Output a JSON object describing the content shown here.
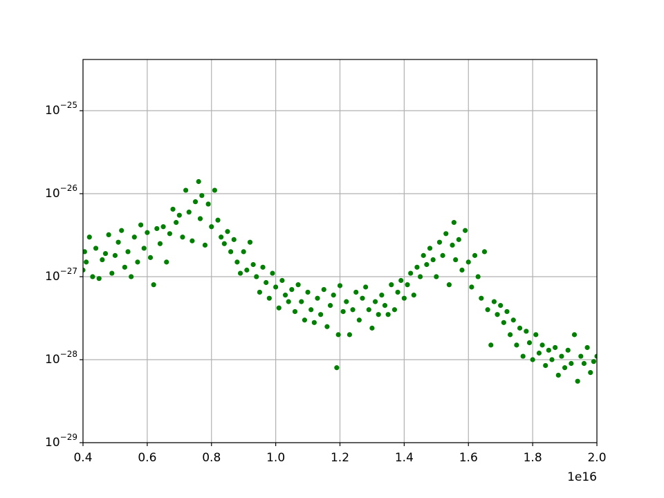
{
  "chart_data": {
    "type": "scatter",
    "color": "#008000",
    "grid": true,
    "log_y": true,
    "x_offset_label": "1e16",
    "xlim": [
      4000000000000000.0,
      2e+16
    ],
    "xticks": [
      {
        "value": 4000000000000000.0,
        "label": "0.4"
      },
      {
        "value": 6000000000000000.0,
        "label": "0.6"
      },
      {
        "value": 8000000000000000.0,
        "label": "0.8"
      },
      {
        "value": 1e+16,
        "label": "1.0"
      },
      {
        "value": 1.2e+16,
        "label": "1.2"
      },
      {
        "value": 1.4e+16,
        "label": "1.4"
      },
      {
        "value": 1.6e+16,
        "label": "1.6"
      },
      {
        "value": 1.8e+16,
        "label": "1.8"
      },
      {
        "value": 2e+16,
        "label": "2.0"
      }
    ],
    "ylim": [
      1e-29,
      4.14e-25
    ],
    "yticks": [
      {
        "value": 1e-29,
        "label": "10−29"
      },
      {
        "value": 1e-28,
        "label": "10−28"
      },
      {
        "value": 1e-27,
        "label": "10−27"
      },
      {
        "value": 1e-26,
        "label": "10−26"
      },
      {
        "value": 1e-25,
        "label": "10−25"
      }
    ],
    "x": [
      4000000000000000.0,
      4050000000000000.0,
      4100000000000000.0,
      4200000000000000.0,
      4300000000000000.0,
      4400000000000000.0,
      4500000000000000.0,
      4600000000000000.0,
      4700000000000000.0,
      4800000000000000.0,
      4900000000000000.0,
      5000000000000000.0,
      5100000000000000.0,
      5200000000000000.0,
      5300000000000000.0,
      5400000000000000.0,
      5500000000000000.0,
      5600000000000000.0,
      5700000000000000.0,
      5800000000000000.0,
      5900000000000000.0,
      6000000000000000.0,
      6100000000000000.0,
      6200000000000000.0,
      6300000000000000.0,
      6400000000000000.0,
      6500000000000000.0,
      6600000000000000.0,
      6700000000000000.0,
      6800000000000000.0,
      6900000000000000.0,
      7000000000000000.0,
      7100000000000000.0,
      7200000000000000.0,
      7300000000000000.0,
      7400000000000000.0,
      7500000000000000.0,
      7600000000000000.0,
      7650000000000000.0,
      7700000000000000.0,
      7800000000000000.0,
      7900000000000000.0,
      8000000000000000.0,
      8100000000000000.0,
      8200000000000000.0,
      8300000000000000.0,
      8400000000000000.0,
      8500000000000000.0,
      8600000000000000.0,
      8700000000000000.0,
      8800000000000000.0,
      8900000000000000.0,
      9000000000000000.0,
      9100000000000000.0,
      9200000000000000.0,
      9300000000000000.0,
      9400000000000000.0,
      9500000000000000.0,
      9600000000000000.0,
      9700000000000000.0,
      9800000000000000.0,
      9900000000000000.0,
      1e+16,
      1.01e+16,
      1.02e+16,
      1.03e+16,
      1.04e+16,
      1.05e+16,
      1.06e+16,
      1.07e+16,
      1.08e+16,
      1.09e+16,
      1.1e+16,
      1.11e+16,
      1.12e+16,
      1.13e+16,
      1.14e+16,
      1.15e+16,
      1.16e+16,
      1.17e+16,
      1.18e+16,
      1.19e+16,
      1.195e+16,
      1.2e+16,
      1.21e+16,
      1.22e+16,
      1.23e+16,
      1.24e+16,
      1.25e+16,
      1.26e+16,
      1.27e+16,
      1.28e+16,
      1.29e+16,
      1.3e+16,
      1.31e+16,
      1.32e+16,
      1.33e+16,
      1.34e+16,
      1.35e+16,
      1.36e+16,
      1.37e+16,
      1.38e+16,
      1.39e+16,
      1.4e+16,
      1.41e+16,
      1.42e+16,
      1.43e+16,
      1.44e+16,
      1.45e+16,
      1.46e+16,
      1.47e+16,
      1.48e+16,
      1.49e+16,
      1.5e+16,
      1.51e+16,
      1.52e+16,
      1.53e+16,
      1.54e+16,
      1.55e+16,
      1.555e+16,
      1.56e+16,
      1.57e+16,
      1.58e+16,
      1.59e+16,
      1.6e+16,
      1.61e+16,
      1.62e+16,
      1.63e+16,
      1.64e+16,
      1.65e+16,
      1.66e+16,
      1.67e+16,
      1.68e+16,
      1.69e+16,
      1.7e+16,
      1.71e+16,
      1.72e+16,
      1.73e+16,
      1.74e+16,
      1.75e+16,
      1.76e+16,
      1.77e+16,
      1.78e+16,
      1.79e+16,
      1.8e+16,
      1.81e+16,
      1.82e+16,
      1.83e+16,
      1.84e+16,
      1.85e+16,
      1.86e+16,
      1.87e+16,
      1.88e+16,
      1.89e+16,
      1.9e+16,
      1.91e+16,
      1.92e+16,
      1.93e+16,
      1.94e+16,
      1.95e+16,
      1.96e+16,
      1.97e+16,
      1.98e+16,
      1.99e+16,
      2e+16
    ],
    "values": [
      1.2e-27,
      2e-27,
      1.5e-27,
      3e-27,
      1e-27,
      2.2e-27,
      9.5e-28,
      1.6e-27,
      1.9e-27,
      3.2e-27,
      1.1e-27,
      1.8e-27,
      2.6e-27,
      3.6e-27,
      1.3e-27,
      2e-27,
      1e-27,
      3e-27,
      1.5e-27,
      4.2e-27,
      2.2e-27,
      3.4e-27,
      1.7e-27,
      8e-28,
      3.8e-27,
      2.5e-27,
      4e-27,
      1.5e-27,
      3.3e-27,
      6.5e-27,
      4.5e-27,
      5.5e-27,
      3e-27,
      1.1e-26,
      6e-27,
      2.7e-27,
      8e-27,
      1.4e-26,
      5e-27,
      9.5e-27,
      2.4e-27,
      7.5e-27,
      4e-27,
      1.1e-26,
      4.8e-27,
      3e-27,
      2.5e-27,
      3.5e-27,
      2e-27,
      2.8e-27,
      1.5e-27,
      1.1e-27,
      2e-27,
      1.2e-27,
      2.6e-27,
      1.4e-27,
      1e-27,
      6.5e-28,
      1.3e-27,
      8.5e-28,
      5.5e-28,
      1.1e-27,
      7.5e-28,
      4.2e-28,
      9e-28,
      6e-28,
      5e-28,
      7e-28,
      3.8e-28,
      8e-28,
      5e-28,
      3e-28,
      6.5e-28,
      4e-28,
      2.8e-28,
      5.5e-28,
      3.5e-28,
      7e-28,
      2.5e-28,
      4.5e-28,
      6e-28,
      8e-29,
      2e-28,
      7.8e-28,
      3.8e-28,
      5e-28,
      2e-28,
      4e-28,
      6.5e-28,
      3e-28,
      5.5e-28,
      7.5e-28,
      4e-28,
      2.4e-28,
      5e-28,
      3.5e-28,
      6e-28,
      4.5e-28,
      3.5e-28,
      8e-28,
      4e-28,
      6.5e-28,
      9e-28,
      5.5e-28,
      8e-28,
      1.1e-27,
      6e-28,
      1.3e-27,
      1e-27,
      1.8e-27,
      1.4e-27,
      2.2e-27,
      1.6e-27,
      1e-27,
      2.6e-27,
      1.8e-27,
      3.3e-27,
      8e-28,
      2.4e-27,
      4.5e-27,
      1.6e-27,
      2.8e-27,
      1.2e-27,
      3.6e-27,
      1.5e-27,
      7.5e-28,
      1.8e-27,
      1e-27,
      5.5e-28,
      2e-27,
      4e-28,
      1.5e-28,
      5e-28,
      3.5e-28,
      4.5e-28,
      2.8e-28,
      3.8e-28,
      2e-28,
      3e-28,
      1.5e-28,
      2.4e-28,
      1.1e-28,
      2.2e-28,
      1.6e-28,
      1e-28,
      2e-28,
      1.2e-28,
      1.5e-28,
      8.5e-29,
      1.3e-28,
      1e-28,
      1.4e-28,
      6.5e-29,
      1.1e-28,
      8e-29,
      1.3e-28,
      9e-29,
      2e-28,
      5.5e-29,
      1.1e-28,
      9e-29,
      1.4e-28,
      7e-29,
      9.5e-29,
      1.1e-28
    ]
  }
}
